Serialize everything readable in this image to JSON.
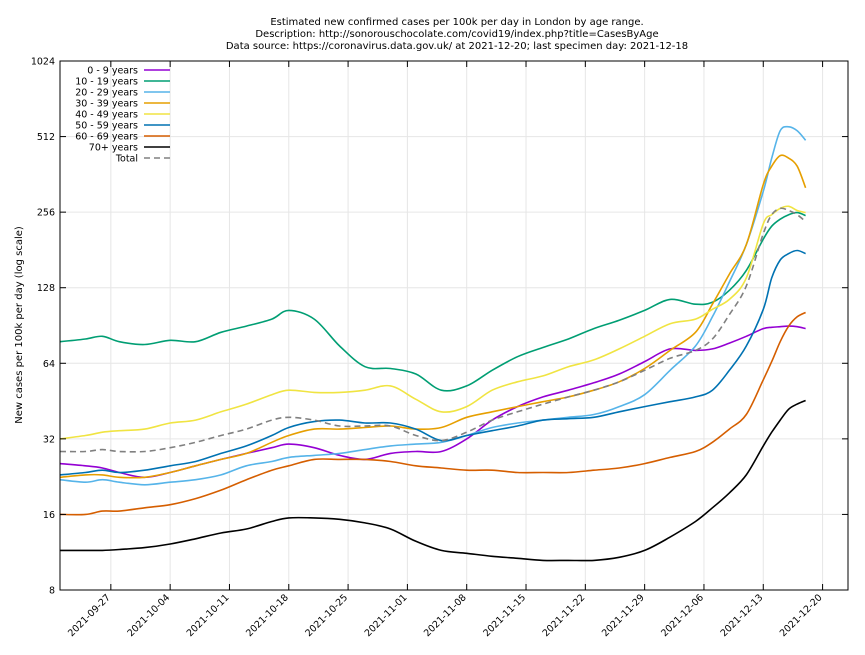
{
  "chart_data": {
    "type": "line",
    "title_lines": [
      "Estimated new confirmed cases per 100k per day in London by age range.",
      "Description: http://sonorouschocolate.com/covid19/index.php?title=CasesByAge",
      "Data source: https://coronavirus.data.gov.uk/ at 2021-12-20; last specimen day: 2021-12-18"
    ],
    "xlabel": "",
    "ylabel": "New cases per 100k per day (log scale)",
    "y_scale": "log2",
    "ylim": [
      8,
      1024
    ],
    "y_ticks": [
      8,
      16,
      32,
      64,
      128,
      256,
      512,
      1024
    ],
    "y_tick_labels": [
      "8",
      "16",
      "32",
      "64",
      "128",
      "256",
      "512",
      "1024"
    ],
    "xlim": [
      "2021-09-21",
      "2021-12-23"
    ],
    "x_ticks": [
      "2021-09-27",
      "2021-10-04",
      "2021-10-11",
      "2021-10-18",
      "2021-10-25",
      "2021-11-01",
      "2021-11-08",
      "2021-11-15",
      "2021-11-22",
      "2021-11-29",
      "2021-12-06",
      "2021-12-13",
      "2021-12-20"
    ],
    "grid": true,
    "legend_position": "top-left",
    "x": [
      "2021-09-21",
      "2021-09-24",
      "2021-09-26",
      "2021-09-28",
      "2021-10-01",
      "2021-10-04",
      "2021-10-07",
      "2021-10-10",
      "2021-10-13",
      "2021-10-16",
      "2021-10-18",
      "2021-10-21",
      "2021-10-24",
      "2021-10-27",
      "2021-10-30",
      "2021-11-02",
      "2021-11-05",
      "2021-11-08",
      "2021-11-11",
      "2021-11-14",
      "2021-11-17",
      "2021-11-20",
      "2021-11-23",
      "2021-11-26",
      "2021-11-29",
      "2021-12-02",
      "2021-12-05",
      "2021-12-07",
      "2021-12-09",
      "2021-12-11",
      "2021-12-13",
      "2021-12-14",
      "2021-12-15",
      "2021-12-16",
      "2021-12-17",
      "2021-12-18"
    ],
    "series": [
      {
        "name": "0 - 9 years",
        "color": "#9400d3",
        "dash": false,
        "values": [
          25.5,
          25,
          24.5,
          23.5,
          22.5,
          23.5,
          25,
          26.5,
          28,
          29.5,
          30.5,
          29.5,
          27.5,
          26.5,
          28,
          28.5,
          28.5,
          32,
          38,
          43,
          47,
          50,
          53.5,
          58,
          65,
          73,
          72,
          73,
          77,
          82,
          88,
          89,
          89.5,
          90,
          89.5,
          88
        ]
      },
      {
        "name": "10 - 19 years",
        "color": "#009e73",
        "dash": false,
        "values": [
          78,
          80,
          82,
          78,
          76,
          79,
          78,
          85,
          90,
          96,
          104,
          96,
          75,
          62,
          61,
          58,
          50,
          52,
          60,
          68,
          74,
          80,
          88,
          95,
          104,
          115,
          110,
          112,
          125,
          150,
          200,
          225,
          240,
          250,
          255,
          248
        ]
      },
      {
        "name": "20 - 29 years",
        "color": "#56b4e9",
        "dash": false,
        "values": [
          22,
          21.5,
          22,
          21.5,
          21,
          21.5,
          22,
          23,
          25,
          26,
          27,
          27.5,
          28,
          29,
          30,
          30.5,
          31,
          33,
          35.5,
          37,
          38,
          39,
          40,
          43,
          48,
          60,
          75,
          98,
          135,
          190,
          310,
          420,
          540,
          560,
          540,
          495
        ]
      },
      {
        "name": "30 - 39 years",
        "color": "#e69f00",
        "dash": false,
        "values": [
          22.5,
          23,
          23,
          22.5,
          22.5,
          23.5,
          25,
          26.5,
          28,
          31,
          33,
          35,
          35,
          35.5,
          36,
          35,
          35.5,
          39,
          41,
          43,
          45,
          47,
          50,
          54,
          61,
          72,
          85,
          110,
          145,
          190,
          330,
          390,
          430,
          420,
          390,
          320
        ]
      },
      {
        "name": "40 - 49 years",
        "color": "#f0e442",
        "dash": false,
        "values": [
          32,
          33,
          34,
          34.5,
          35,
          37,
          38,
          41,
          44,
          48,
          50,
          49,
          49,
          50,
          52,
          46,
          41,
          43,
          50,
          54,
          57,
          62,
          66,
          73,
          82,
          92,
          96,
          105,
          115,
          140,
          230,
          250,
          265,
          270,
          260,
          255
        ]
      },
      {
        "name": "50 - 59 years",
        "color": "#0072b2",
        "dash": false,
        "values": [
          23,
          23.5,
          24,
          23.5,
          24,
          25,
          26,
          28,
          30,
          33,
          35.5,
          37.5,
          38,
          37,
          37,
          35,
          31.5,
          33,
          34.5,
          36,
          38,
          38.5,
          39,
          41,
          43,
          45,
          47,
          50,
          60,
          75,
          105,
          140,
          165,
          175,
          180,
          175
        ]
      },
      {
        "name": "60 - 69 years",
        "color": "#d55e00",
        "dash": false,
        "values": [
          16,
          16,
          16.5,
          16.5,
          17,
          17.5,
          18.5,
          20,
          22,
          24,
          25,
          26.5,
          26.5,
          26.5,
          26,
          25,
          24.5,
          24,
          24,
          23.5,
          23.5,
          23.5,
          24,
          24.5,
          25.5,
          27,
          28.5,
          31,
          35,
          40,
          55,
          65,
          78,
          90,
          98,
          102
        ]
      },
      {
        "name": "70+ years",
        "color": "#000000",
        "dash": false,
        "values": [
          11.5,
          11.5,
          11.5,
          11.6,
          11.8,
          12.2,
          12.8,
          13.5,
          14,
          15,
          15.5,
          15.5,
          15.3,
          14.8,
          14,
          12.5,
          11.5,
          11.2,
          10.9,
          10.7,
          10.5,
          10.5,
          10.5,
          10.8,
          11.5,
          13,
          15,
          17,
          19.5,
          23,
          30,
          34,
          38,
          42,
          44,
          45.5
        ]
      },
      {
        "name": "Total",
        "color": "#808080",
        "dash": true,
        "values": [
          28.5,
          28.5,
          29,
          28.5,
          28.5,
          29.5,
          31,
          33,
          35,
          38,
          39,
          38,
          36,
          36,
          36,
          33,
          31.5,
          34,
          38,
          41,
          44,
          47,
          50,
          54,
          60,
          67,
          72,
          80,
          100,
          130,
          210,
          250,
          265,
          260,
          250,
          235
        ]
      }
    ]
  }
}
